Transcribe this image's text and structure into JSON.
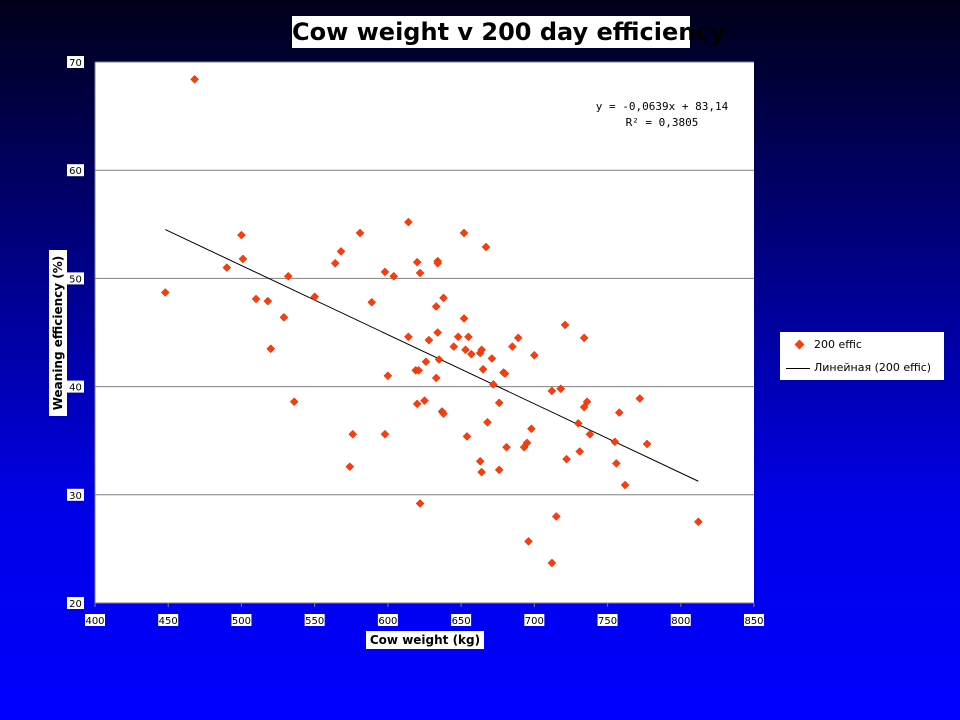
{
  "chart_data": {
    "type": "scatter",
    "title": "Cow weight v 200 day efficiency",
    "xlabel": "Cow weight (kg)",
    "ylabel": "Weaning efficiency (%)",
    "xlim": [
      400,
      850
    ],
    "ylim": [
      20,
      70
    ],
    "x_ticks": [
      "400",
      "450",
      "500",
      "550",
      "600",
      "650",
      "700",
      "750",
      "800",
      "850"
    ],
    "y_ticks": [
      "20",
      "30",
      "40",
      "50",
      "60",
      "70"
    ],
    "grid": "horizontal",
    "legend_position": "right",
    "trendline": {
      "equation": "y = -0,0639x + 83,14",
      "r2": "R² = 0,3805",
      "slope": -0.0639,
      "intercept": 83.14,
      "x_range": [
        448,
        812
      ]
    },
    "series": [
      {
        "name": "200 effic",
        "color": "#ff3b0a",
        "points": [
          [
            448,
            48.7
          ],
          [
            468,
            68.4
          ],
          [
            490,
            51.0
          ],
          [
            500,
            54.0
          ],
          [
            501,
            51.8
          ],
          [
            510,
            48.1
          ],
          [
            518,
            47.9
          ],
          [
            520,
            43.5
          ],
          [
            529,
            46.4
          ],
          [
            532,
            50.2
          ],
          [
            536,
            38.6
          ],
          [
            550,
            48.3
          ],
          [
            564,
            51.4
          ],
          [
            568,
            52.5
          ],
          [
            574,
            32.6
          ],
          [
            576,
            35.6
          ],
          [
            581,
            54.2
          ],
          [
            589,
            47.8
          ],
          [
            598,
            50.6
          ],
          [
            598,
            35.6
          ],
          [
            600,
            41.0
          ],
          [
            604,
            50.2
          ],
          [
            614,
            55.2
          ],
          [
            614,
            44.6
          ],
          [
            619,
            41.5
          ],
          [
            620,
            51.5
          ],
          [
            620,
            38.4
          ],
          [
            621,
            41.5
          ],
          [
            622,
            50.5
          ],
          [
            622,
            29.2
          ],
          [
            625,
            38.7
          ],
          [
            626,
            42.3
          ],
          [
            628,
            44.3
          ],
          [
            633,
            47.4
          ],
          [
            633,
            40.8
          ],
          [
            634,
            51.6
          ],
          [
            634,
            45.0
          ],
          [
            634,
            51.4
          ],
          [
            635,
            42.5
          ],
          [
            637,
            37.7
          ],
          [
            638,
            48.2
          ],
          [
            638,
            37.5
          ],
          [
            645,
            43.7
          ],
          [
            648,
            44.6
          ],
          [
            652,
            54.2
          ],
          [
            652,
            46.3
          ],
          [
            653,
            43.4
          ],
          [
            654,
            35.4
          ],
          [
            655,
            44.6
          ],
          [
            657,
            43.0
          ],
          [
            663,
            43.1
          ],
          [
            663,
            33.1
          ],
          [
            664,
            43.4
          ],
          [
            664,
            32.1
          ],
          [
            665,
            41.6
          ],
          [
            667,
            52.9
          ],
          [
            668,
            36.7
          ],
          [
            671,
            42.6
          ],
          [
            672,
            40.2
          ],
          [
            676,
            38.5
          ],
          [
            676,
            32.3
          ],
          [
            679,
            41.3
          ],
          [
            680,
            41.2
          ],
          [
            681,
            34.4
          ],
          [
            685,
            43.7
          ],
          [
            689,
            44.5
          ],
          [
            693,
            34.4
          ],
          [
            695,
            34.8
          ],
          [
            696,
            25.7
          ],
          [
            698,
            36.1
          ],
          [
            700,
            42.9
          ],
          [
            712,
            39.6
          ],
          [
            712,
            23.7
          ],
          [
            715,
            28.0
          ],
          [
            718,
            39.8
          ],
          [
            721,
            45.7
          ],
          [
            722,
            33.3
          ],
          [
            730,
            36.6
          ],
          [
            731,
            34.0
          ],
          [
            734,
            44.5
          ],
          [
            734,
            38.1
          ],
          [
            736,
            38.6
          ],
          [
            738,
            35.6
          ],
          [
            755,
            34.9
          ],
          [
            756,
            32.9
          ],
          [
            758,
            37.6
          ],
          [
            762,
            30.9
          ],
          [
            772,
            38.9
          ],
          [
            777,
            34.7
          ],
          [
            812,
            27.5
          ]
        ]
      }
    ],
    "legend": {
      "series_label": "200 effic",
      "trend_label": "Линейная (200 effic)"
    }
  }
}
